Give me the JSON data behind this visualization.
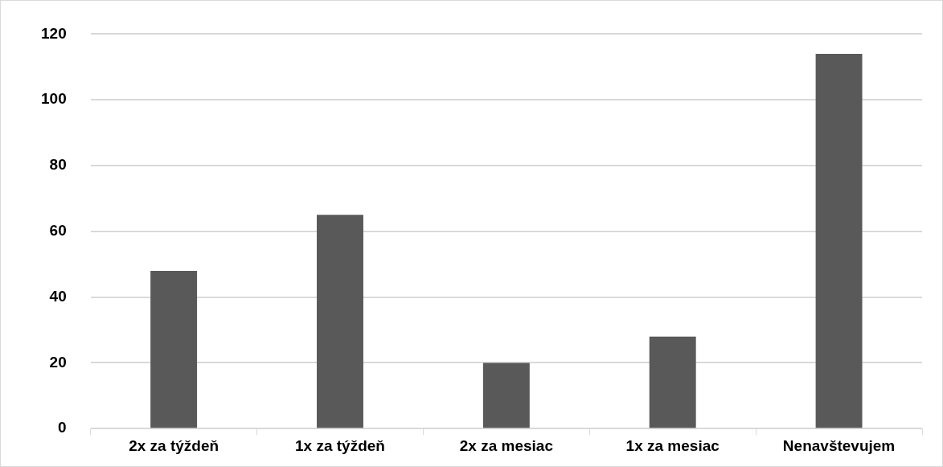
{
  "chart_data": {
    "type": "bar",
    "categories": [
      "2x za týždeň",
      "1x za týždeň",
      "2x za mesiac",
      "1x za mesiac",
      "Nenavštevujem"
    ],
    "values": [
      48,
      65,
      20,
      28,
      114
    ],
    "color": "#595959",
    "ylim": [
      0,
      120
    ],
    "yticks": [
      0,
      20,
      40,
      60,
      80,
      100,
      120
    ],
    "grid": "y",
    "legend": false
  }
}
